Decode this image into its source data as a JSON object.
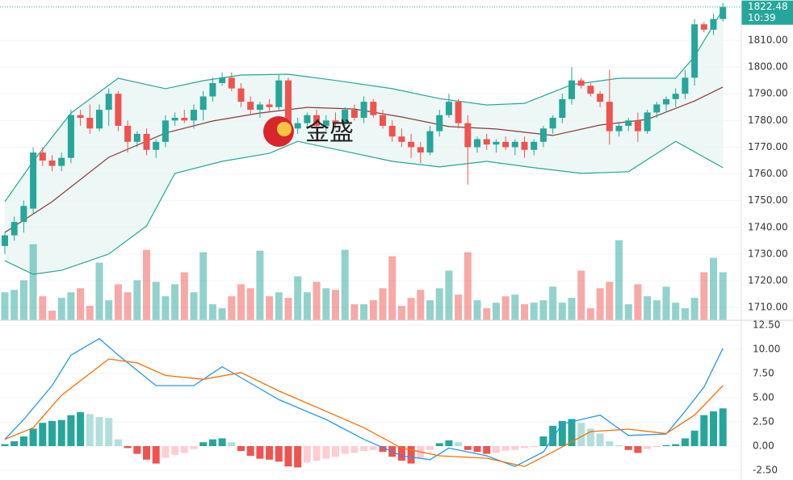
{
  "chart_data": [
    {
      "type": "candlestick",
      "watermark": "金盛",
      "last_label": "1822.48",
      "time_label": "10:39",
      "up_color": "#26a69a",
      "down_color": "#ef5350",
      "band_fill": "#e8f5f3",
      "ylim": [
        1705.2,
        1825.1
      ],
      "yticks": [
        {
          "value": 1710,
          "label": "1710.00"
        },
        {
          "value": 1720,
          "label": "1720.00"
        },
        {
          "value": 1730,
          "label": "1730.00"
        },
        {
          "value": 1740,
          "label": "1740.00"
        },
        {
          "value": 1750,
          "label": "1750.00"
        },
        {
          "value": 1760,
          "label": "1760.00"
        },
        {
          "value": 1770,
          "label": "1770.00"
        },
        {
          "value": 1780,
          "label": "1780.00"
        },
        {
          "value": 1790,
          "label": "1790.00"
        },
        {
          "value": 1800,
          "label": "1800.00"
        },
        {
          "value": 1810,
          "label": "1810.00"
        }
      ],
      "open": [
        1733,
        1737,
        1742,
        1747,
        1768,
        1765,
        1763,
        1766,
        1782,
        1781,
        1777,
        1784,
        1790,
        1778,
        1772,
        1775,
        1769,
        1772,
        1780,
        1781,
        1780,
        1784,
        1789,
        1794,
        1796,
        1792,
        1787,
        1784,
        1786,
        1785,
        1795,
        1777,
        1779,
        1782,
        1778,
        1780,
        1779,
        1784,
        1781,
        1787,
        1782,
        1778,
        1774,
        1772,
        1770,
        1768,
        1776,
        1782,
        1787,
        1779,
        1770,
        1773,
        1771,
        1772,
        1770,
        1772,
        1769,
        1772,
        1777,
        1781,
        1788,
        1795,
        1793,
        1790,
        1787,
        1776,
        1778,
        1780,
        1776,
        1783,
        1786,
        1788,
        1790,
        1796,
        1816,
        1814,
        1818
      ],
      "high": [
        1738,
        1744,
        1750,
        1770,
        1770,
        1767,
        1768,
        1784,
        1784,
        1786,
        1786,
        1792,
        1791,
        1780,
        1776,
        1777,
        1773,
        1782,
        1783,
        1784,
        1786,
        1791,
        1796,
        1798,
        1798,
        1794,
        1789,
        1787,
        1788,
        1797,
        1796,
        1781,
        1783,
        1784,
        1782,
        1783,
        1785,
        1786,
        1789,
        1788,
        1784,
        1780,
        1777,
        1775,
        1772,
        1778,
        1784,
        1790,
        1788,
        1782,
        1774,
        1775,
        1773,
        1774,
        1773,
        1774,
        1773,
        1778,
        1782,
        1790,
        1800,
        1796,
        1794,
        1791,
        1799,
        1779,
        1781,
        1783,
        1784,
        1787,
        1789,
        1792,
        1799,
        1818,
        1817,
        1820,
        1824
      ],
      "low": [
        1730,
        1735,
        1738,
        1745,
        1763,
        1761,
        1761,
        1764,
        1778,
        1775,
        1776,
        1778,
        1776,
        1768,
        1770,
        1767,
        1766,
        1770,
        1778,
        1779,
        1777,
        1780,
        1787,
        1793,
        1791,
        1785,
        1782,
        1781,
        1783,
        1784,
        1775,
        1775,
        1777,
        1772,
        1776,
        1777,
        1778,
        1780,
        1779,
        1781,
        1777,
        1772,
        1770,
        1766,
        1764,
        1767,
        1774,
        1781,
        1777,
        1756,
        1768,
        1769,
        1768,
        1769,
        1767,
        1766,
        1767,
        1770,
        1775,
        1779,
        1786,
        1792,
        1789,
        1785,
        1771,
        1774,
        1776,
        1772,
        1775,
        1781,
        1783,
        1785,
        1788,
        1793,
        1813,
        1812,
        1817
      ],
      "close": [
        1737,
        1742,
        1748,
        1768,
        1765,
        1763,
        1766,
        1782,
        1781,
        1777,
        1784,
        1790,
        1778,
        1772,
        1775,
        1769,
        1772,
        1780,
        1781,
        1780,
        1784,
        1789,
        1794,
        1796,
        1792,
        1787,
        1784,
        1786,
        1785,
        1795,
        1777,
        1779,
        1782,
        1778,
        1780,
        1779,
        1784,
        1781,
        1787,
        1782,
        1778,
        1774,
        1772,
        1770,
        1768,
        1776,
        1782,
        1787,
        1779,
        1770,
        1773,
        1771,
        1772,
        1770,
        1772,
        1769,
        1772,
        1777,
        1781,
        1788,
        1795,
        1793,
        1790,
        1787,
        1776,
        1778,
        1780,
        1776,
        1783,
        1786,
        1788,
        1790,
        1796,
        1816,
        1814,
        1818,
        1822.48
      ],
      "volume_lim": [
        0,
        400
      ],
      "volume": [
        35,
        38,
        50,
        95,
        30,
        12,
        28,
        35,
        40,
        18,
        72,
        25,
        45,
        35,
        50,
        88,
        48,
        30,
        45,
        60,
        35,
        85,
        20,
        15,
        30,
        45,
        40,
        87,
        30,
        35,
        28,
        55,
        35,
        48,
        40,
        38,
        88,
        20,
        20,
        25,
        40,
        80,
        18,
        28,
        38,
        25,
        40,
        62,
        32,
        85,
        25,
        15,
        22,
        30,
        32,
        20,
        22,
        25,
        42,
        22,
        28,
        62,
        15,
        40,
        48,
        100,
        20,
        45,
        30,
        25,
        42,
        22,
        15,
        28,
        60,
        78,
        60
      ],
      "overlays": [
        {
          "color": "#26a69a",
          "x": [
            0,
            3,
            7,
            12,
            17,
            21,
            25,
            30,
            35,
            41,
            46,
            51,
            55,
            60,
            65,
            71,
            73,
            76
          ],
          "values": [
            1749.6,
            1764.7,
            1782.8,
            1795.8,
            1791.9,
            1794.9,
            1797,
            1797.3,
            1795,
            1791.9,
            1788.2,
            1785.8,
            1786.4,
            1793.4,
            1795.8,
            1795.8,
            1804,
            1821.5
          ]
        },
        {
          "color": "#8b3a3a",
          "x": [
            0,
            5,
            11,
            17,
            22,
            27,
            32,
            37,
            42,
            47,
            52,
            58,
            63,
            68,
            73,
            76
          ],
          "values": [
            1738.1,
            1749.6,
            1766.2,
            1775.3,
            1779.8,
            1782.8,
            1784.9,
            1784.3,
            1781.3,
            1777.7,
            1776.8,
            1774.4,
            1778.3,
            1780.4,
            1787.3,
            1792.5
          ]
        },
        {
          "color": "#26a69a",
          "x": [
            0,
            3,
            6,
            11,
            15,
            18,
            23,
            28,
            31,
            35,
            41,
            46,
            51,
            56,
            61,
            66,
            71,
            76
          ],
          "values": [
            1727.5,
            1722.4,
            1723.9,
            1730,
            1740.5,
            1760.2,
            1764.7,
            1767.7,
            1772.2,
            1769.2,
            1764.7,
            1762.6,
            1764.7,
            1762.3,
            1760.2,
            1760.8,
            1772.2,
            1762.3
          ]
        }
      ]
    },
    {
      "type": "macd",
      "ylim": [
        -3.5,
        13.0
      ],
      "yticks": [
        {
          "value": -2.5,
          "label": "-2.50"
        },
        {
          "value": 0,
          "label": "0.00"
        },
        {
          "value": 2.5,
          "label": "2.50"
        },
        {
          "value": 5,
          "label": "5.00"
        },
        {
          "value": 7.5,
          "label": "7.50"
        },
        {
          "value": 10,
          "label": "10.00"
        },
        {
          "value": 12.5,
          "label": "12.50"
        }
      ],
      "histogram": [
        0.2,
        0.5,
        1.0,
        1.8,
        2.4,
        2.6,
        2.7,
        3.2,
        3.5,
        3.3,
        3.0,
        2.9,
        0.7,
        -0.2,
        -0.8,
        -1.4,
        -1.8,
        -1.2,
        -0.9,
        -0.7,
        -0.3,
        0.4,
        0.7,
        0.8,
        0.4,
        -0.5,
        -1.0,
        -1.3,
        -1.4,
        -1.6,
        -2.1,
        -2.2,
        -1.7,
        -1.5,
        -1.3,
        -1.1,
        -0.8,
        -0.7,
        -0.5,
        -0.4,
        -0.6,
        -1.1,
        -1.5,
        -1.8,
        -1.2,
        -0.4,
        0.3,
        0.6,
        0.4,
        -0.4,
        -0.6,
        -0.8,
        -0.7,
        -0.5,
        -0.4,
        -0.2,
        -0.1,
        1.0,
        2.1,
        2.6,
        2.8,
        2.4,
        1.8,
        1.3,
        0.5,
        0.1,
        -0.4,
        -0.7,
        -0.3,
        -0.1,
        0.1,
        0.2,
        0.8,
        1.6,
        3.2,
        3.6,
        3.9
      ],
      "series": [
        {
          "color": "#2196f3",
          "x": [
            0,
            2,
            5,
            7,
            10,
            12,
            16,
            20,
            23,
            26,
            29,
            34,
            38,
            42,
            45,
            47,
            51,
            54,
            57,
            59,
            63,
            66,
            70,
            72,
            74,
            76
          ],
          "values": [
            0.7,
            2.75,
            6.25,
            9.4,
            11.1,
            9.4,
            6.25,
            6.25,
            8.2,
            6.5,
            4.8,
            2.75,
            0.7,
            -1.0,
            -1.4,
            -0.2,
            -1.0,
            -2.1,
            -0.6,
            2.3,
            3.2,
            1.1,
            1.25,
            3.6,
            6.1,
            10.1
          ]
        },
        {
          "color": "#ff6d00",
          "x": [
            0,
            3,
            6,
            11,
            14,
            17,
            21,
            25,
            29,
            34,
            38,
            42,
            46,
            51,
            55,
            58,
            62,
            66,
            70,
            73,
            76
          ],
          "values": [
            0.7,
            1.9,
            5.25,
            9.0,
            8.6,
            7.3,
            6.9,
            7.6,
            5.7,
            3.6,
            1.9,
            -0.2,
            -1.0,
            -1.25,
            -2.1,
            -0.6,
            1.5,
            1.75,
            1.3,
            3.2,
            6.25
          ]
        }
      ]
    }
  ]
}
